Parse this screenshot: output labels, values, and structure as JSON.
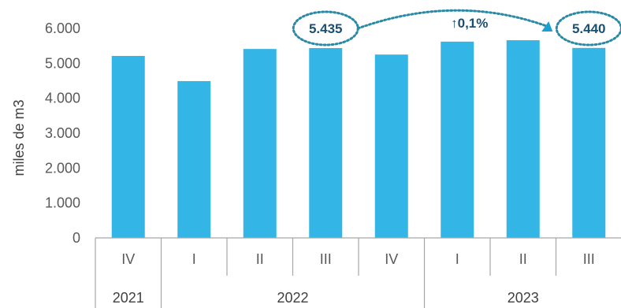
{
  "chart_data": {
    "type": "bar",
    "ylabel": "miles de m3",
    "ylim": [
      0,
      6000
    ],
    "yticks": [
      0,
      1000,
      2000,
      3000,
      4000,
      5000,
      6000
    ],
    "ytick_labels": [
      "0",
      "1.000",
      "2.000",
      "3.000",
      "4.000",
      "5.000",
      "6.000"
    ],
    "categories": [
      "IV",
      "I",
      "II",
      "III",
      "IV",
      "I",
      "II",
      "III"
    ],
    "years": [
      {
        "label": "2021",
        "span": 1
      },
      {
        "label": "2022",
        "span": 4
      },
      {
        "label": "2023",
        "span": 3
      }
    ],
    "values": [
      5210,
      4490,
      5410,
      5435,
      5250,
      5620,
      5660,
      5440
    ],
    "grid": false,
    "bar_color": "#33b5e5",
    "annotations": [
      {
        "text": "5.435",
        "category_index": 3
      },
      {
        "text": "5.440",
        "category_index": 7
      },
      {
        "text": "↑0,1%",
        "between": [
          3,
          7
        ]
      }
    ],
    "annotation_color": "#2a8aa6"
  }
}
